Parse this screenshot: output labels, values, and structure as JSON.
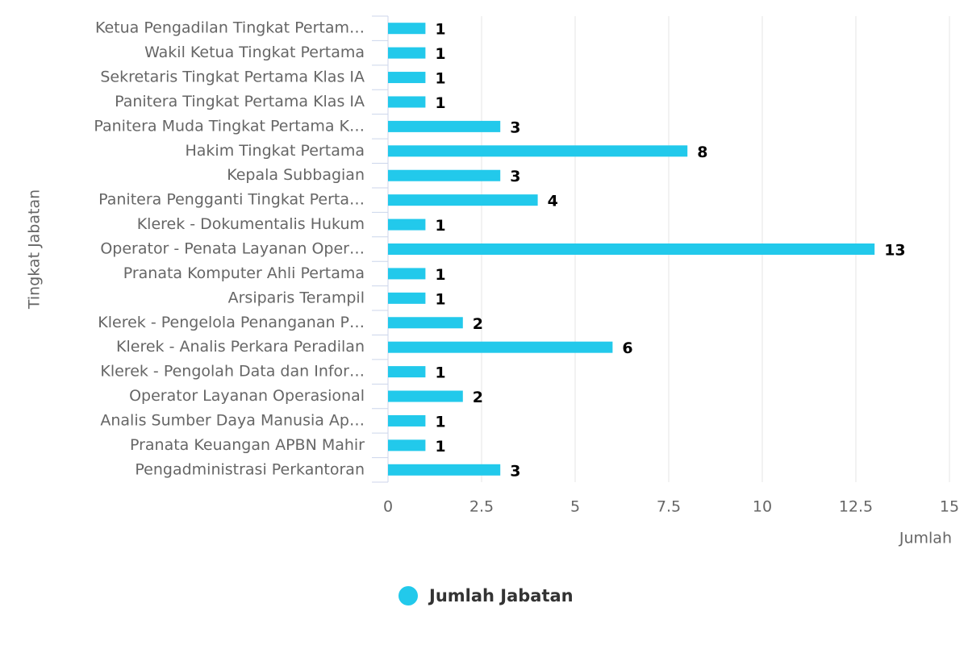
{
  "chart_data": {
    "type": "bar",
    "orientation": "horizontal",
    "categories": [
      "Ketua Pengadilan Tingkat Pertam…",
      "Wakil Ketua Tingkat Pertama",
      "Sekretaris Tingkat Pertama Klas IA",
      "Panitera Tingkat Pertama Klas IA",
      "Panitera Muda Tingkat Pertama K…",
      "Hakim Tingkat Pertama",
      "Kepala Subbagian",
      "Panitera Pengganti Tingkat Perta…",
      "Klerek - Dokumentalis Hukum",
      "Operator - Penata Layanan Oper…",
      "Pranata Komputer Ahli Pertama",
      "Arsiparis Terampil",
      "Klerek - Pengelola Penanganan P…",
      "Klerek - Analis Perkara Peradilan",
      "Klerek - Pengolah Data dan Infor…",
      "Operator Layanan Operasional",
      "Analis Sumber Daya Manusia Ap…",
      "Pranata Keuangan APBN Mahir",
      "Pengadministrasi Perkantoran"
    ],
    "series": [
      {
        "name": "Jumlah Jabatan",
        "color": "#22c9eb",
        "values": [
          1,
          1,
          1,
          1,
          3,
          8,
          3,
          4,
          1,
          13,
          1,
          1,
          2,
          6,
          1,
          2,
          1,
          1,
          3
        ]
      }
    ],
    "xlim": [
      0,
      15
    ],
    "xticks": [
      0,
      2.5,
      5,
      7.5,
      10,
      12.5,
      15
    ],
    "x_label": "Jumlah",
    "y_label": "Tingkat Jabatan",
    "grid": true,
    "legend": "bottom"
  }
}
